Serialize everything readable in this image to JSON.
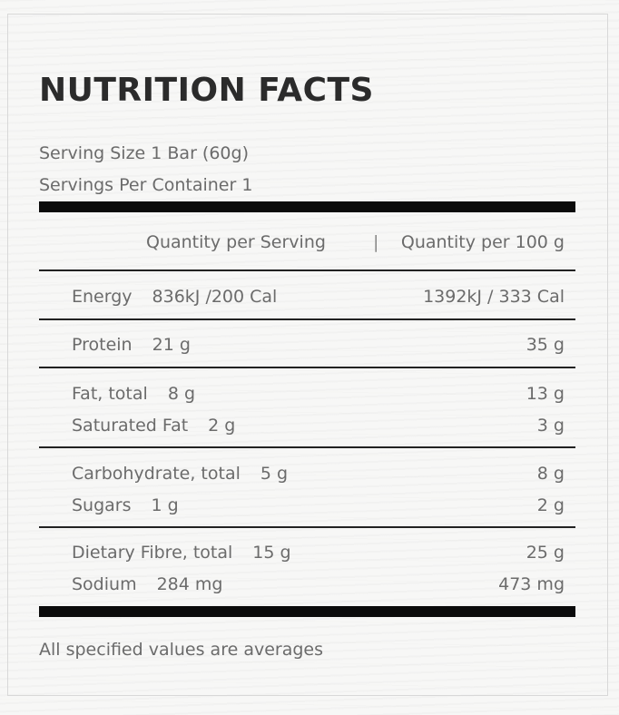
{
  "title": "NUTRITION FACTS",
  "serving_size": "Serving Size 1 Bar (60g)",
  "servings_per_container": "Servings Per Container 1",
  "columns": {
    "per_serving": "Quantity per Serving",
    "separator": "|",
    "per_100g": "Quantity per 100 g"
  },
  "groups": [
    {
      "rows": [
        {
          "label": "Energy",
          "per_serving": "836kJ /200 Cal",
          "per_100g": "1392kJ / 333 Cal"
        }
      ]
    },
    {
      "rows": [
        {
          "label": "Protein",
          "per_serving": "21 g",
          "per_100g": "35 g"
        }
      ]
    },
    {
      "rows": [
        {
          "label": "Fat, total",
          "per_serving": "8 g",
          "per_100g": "13 g"
        },
        {
          "label": "Saturated Fat",
          "per_serving": "2 g",
          "per_100g": "3 g"
        }
      ]
    },
    {
      "rows": [
        {
          "label": "Carbohydrate, total",
          "per_serving": "5 g",
          "per_100g": "8 g"
        },
        {
          "label": "Sugars",
          "per_serving": "1 g",
          "per_100g": "2 g"
        }
      ]
    },
    {
      "rows": [
        {
          "label": "Dietary Fibre, total",
          "per_serving": "15 g",
          "per_100g": "25 g"
        },
        {
          "label": "Sodium",
          "per_serving": "284 mg",
          "per_100g": "473 mg"
        }
      ]
    }
  ],
  "footnote": "All specified values are averages"
}
